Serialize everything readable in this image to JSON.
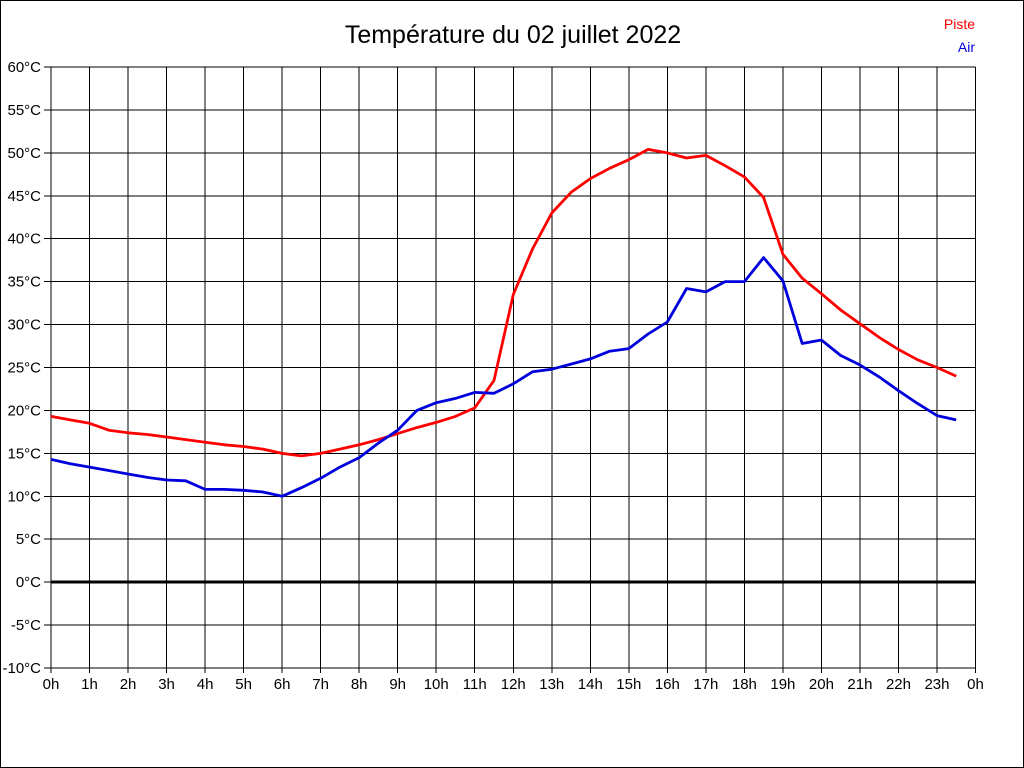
{
  "title": "Température du 02 juillet 2022",
  "legend": [
    {
      "label": "Piste",
      "color": "#ff0000"
    },
    {
      "label": "Air",
      "color": "#0000dd"
    }
  ],
  "chart_data": {
    "type": "line",
    "title": "Température du 02 juillet 2022",
    "xlabel": "",
    "ylabel": "",
    "xlim": [
      0,
      24
    ],
    "ylim": [
      -10,
      60
    ],
    "y_tick_step": 5,
    "grid": true,
    "zero_line_bold": true,
    "legend_position": "top-right",
    "x_unit": "hours",
    "x": [
      0,
      0.5,
      1,
      1.5,
      2,
      2.5,
      3,
      3.5,
      4,
      4.5,
      5,
      5.5,
      6,
      6.5,
      7,
      7.5,
      8,
      8.5,
      9,
      9.5,
      10,
      10.5,
      11,
      11.5,
      12,
      12.5,
      13,
      13.5,
      14,
      14.5,
      15,
      15.5,
      16,
      16.5,
      17,
      17.5,
      18,
      18.5,
      19,
      19.5,
      20,
      20.5,
      21,
      21.5,
      22,
      22.5,
      23,
      23.5
    ],
    "series": [
      {
        "name": "Piste",
        "color": "#ff0000",
        "values": [
          19.3,
          18.9,
          18.5,
          17.7,
          17.4,
          17.2,
          16.9,
          16.6,
          16.3,
          16.0,
          15.8,
          15.5,
          15.0,
          14.7,
          15.0,
          15.5,
          16.0,
          16.6,
          17.3,
          18.0,
          18.6,
          19.3,
          20.3,
          23.5,
          33.5,
          38.8,
          43.0,
          45.4,
          47.0,
          48.2,
          49.2,
          50.4,
          50.0,
          49.4,
          49.7,
          48.5,
          47.2,
          44.8,
          38.2,
          35.4,
          33.6,
          31.7,
          30.1,
          28.5,
          27.1,
          25.9,
          25.0,
          24.0
        ]
      },
      {
        "name": "Air",
        "color": "#0000dd",
        "values": [
          14.3,
          13.8,
          13.4,
          13.0,
          12.6,
          12.2,
          11.9,
          11.8,
          10.8,
          10.8,
          10.7,
          10.5,
          10.0,
          11.0,
          12.1,
          13.4,
          14.5,
          16.2,
          17.7,
          20.0,
          20.9,
          21.4,
          22.1,
          22.0,
          23.1,
          24.5,
          24.8,
          25.4,
          26.0,
          26.9,
          27.2,
          28.9,
          30.3,
          34.2,
          33.8,
          35.0,
          35.0,
          37.8,
          35.1,
          27.8,
          28.2,
          26.4,
          25.3,
          23.9,
          22.3,
          20.8,
          19.4,
          18.9
        ]
      }
    ],
    "xlabel_ticks": [
      "0h",
      "1h",
      "2h",
      "3h",
      "4h",
      "5h",
      "6h",
      "7h",
      "8h",
      "9h",
      "10h",
      "11h",
      "12h",
      "13h",
      "14h",
      "15h",
      "16h",
      "17h",
      "18h",
      "19h",
      "20h",
      "21h",
      "22h",
      "23h",
      "0h"
    ],
    "ylabel_ticks": [
      "60°C",
      "55°C",
      "50°C",
      "45°C",
      "40°C",
      "35°C",
      "30°C",
      "25°C",
      "20°C",
      "15°C",
      "10°C",
      "5°C",
      "0°C",
      "-5°C",
      "-10°C"
    ]
  }
}
